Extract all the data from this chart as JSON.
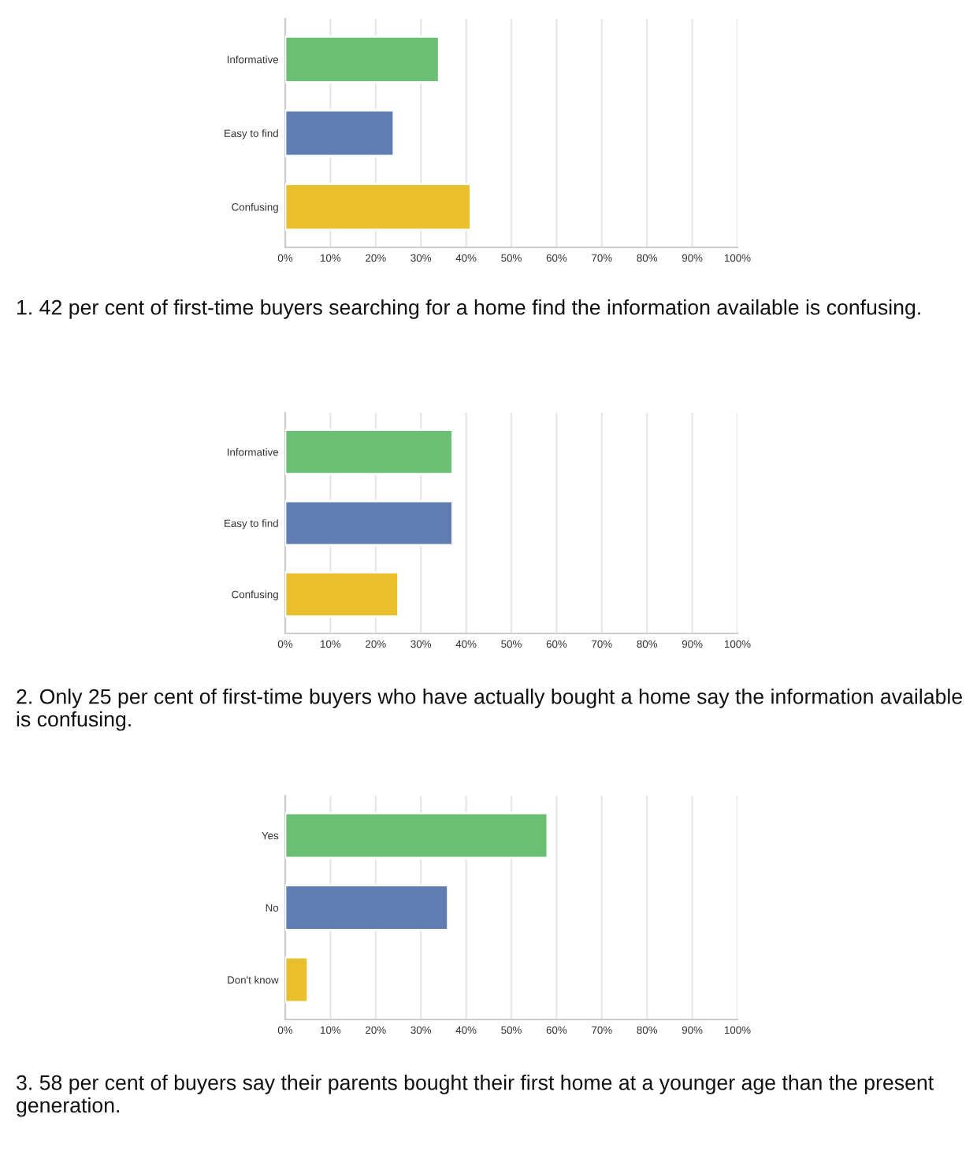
{
  "chart_data": [
    {
      "type": "bar",
      "orientation": "horizontal",
      "categories": [
        "Informative",
        "Easy to find",
        "Confusing"
      ],
      "values": [
        34,
        24,
        41
      ],
      "colors": [
        "#6abf73",
        "#5f7db3",
        "#e9bf2d"
      ],
      "xlim": [
        0,
        100
      ],
      "xticks": [
        {
          "value": 0,
          "label": "0%"
        },
        {
          "value": 10,
          "label": "10%"
        },
        {
          "value": 20,
          "label": "20%"
        },
        {
          "value": 30,
          "label": "30%"
        },
        {
          "value": 40,
          "label": "40%"
        },
        {
          "value": 50,
          "label": "50%"
        },
        {
          "value": 60,
          "label": "60%"
        },
        {
          "value": 70,
          "label": "70%"
        },
        {
          "value": 80,
          "label": "80%"
        },
        {
          "value": 90,
          "label": "90%"
        },
        {
          "value": 100,
          "label": "100%"
        }
      ],
      "grid": "x",
      "annotations": [
        "1. 42 per cent of first-time buyers searching for a home find the information available is confusing."
      ]
    },
    {
      "type": "bar",
      "orientation": "horizontal",
      "categories": [
        "Informative",
        "Easy to find",
        "Confusing"
      ],
      "values": [
        37,
        37,
        25
      ],
      "colors": [
        "#6abf73",
        "#5f7db3",
        "#e9bf2d"
      ],
      "xlim": [
        0,
        100
      ],
      "xticks": [
        {
          "value": 0,
          "label": "0%"
        },
        {
          "value": 10,
          "label": "10%"
        },
        {
          "value": 20,
          "label": "20%"
        },
        {
          "value": 30,
          "label": "30%"
        },
        {
          "value": 40,
          "label": "40%"
        },
        {
          "value": 50,
          "label": "50%"
        },
        {
          "value": 60,
          "label": "60%"
        },
        {
          "value": 70,
          "label": "70%"
        },
        {
          "value": 80,
          "label": "80%"
        },
        {
          "value": 90,
          "label": "90%"
        },
        {
          "value": 100,
          "label": "100%"
        }
      ],
      "grid": "x",
      "annotations": [
        "2. Only 25 per cent of first-time buyers who have actually bought a home say the information available is confusing."
      ]
    },
    {
      "type": "bar",
      "orientation": "horizontal",
      "categories": [
        "Yes",
        "No",
        "Don't know"
      ],
      "values": [
        58,
        36,
        5
      ],
      "colors": [
        "#6abf73",
        "#5f7db3",
        "#e9bf2d"
      ],
      "xlim": [
        0,
        100
      ],
      "xticks": [
        {
          "value": 0,
          "label": "0%"
        },
        {
          "value": 10,
          "label": "10%"
        },
        {
          "value": 20,
          "label": "20%"
        },
        {
          "value": 30,
          "label": "30%"
        },
        {
          "value": 40,
          "label": "40%"
        },
        {
          "value": 50,
          "label": "50%"
        },
        {
          "value": 60,
          "label": "60%"
        },
        {
          "value": 70,
          "label": "70%"
        },
        {
          "value": 80,
          "label": "80%"
        },
        {
          "value": 90,
          "label": "90%"
        },
        {
          "value": 100,
          "label": "100%"
        }
      ],
      "grid": "x",
      "annotations": [
        "3. 58 per cent of buyers say their parents bought their first home at a younger age than the present generation."
      ]
    }
  ]
}
